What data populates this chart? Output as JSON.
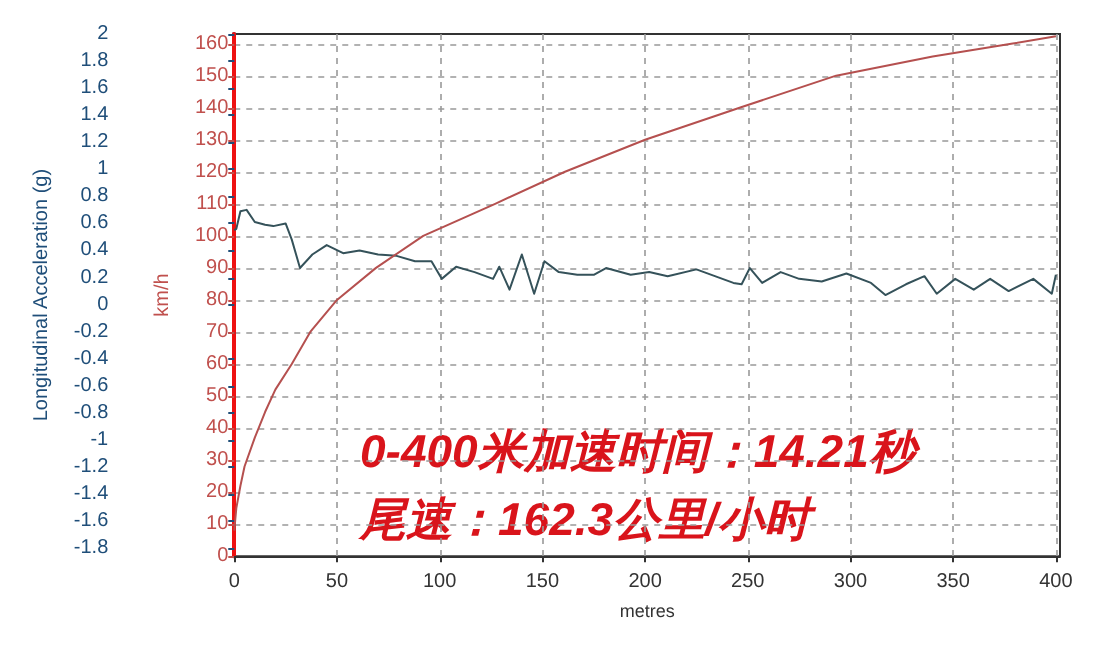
{
  "chart_data": {
    "type": "line",
    "xlabel": "metres",
    "ylabel": "Longitudinal Acceleration (g)",
    "y2label": "km/h",
    "xlim": [
      0,
      402
    ],
    "xticks": [
      0,
      50,
      100,
      150,
      200,
      250,
      300,
      350,
      400
    ],
    "ylim": [
      -1.86,
      2
    ],
    "yticks": [
      -1.8,
      -1.6,
      -1.4,
      -1.2,
      -1,
      -0.8,
      -0.6,
      -0.4,
      -0.2,
      0,
      0.2,
      0.4,
      0.6,
      0.8,
      1,
      1.2,
      1.4,
      1.6,
      1.8,
      2
    ],
    "y2lim": [
      0,
      163
    ],
    "y2ticks": [
      0,
      10,
      20,
      30,
      40,
      50,
      60,
      70,
      80,
      90,
      100,
      110,
      120,
      130,
      140,
      150,
      160
    ],
    "grid": true,
    "marker": "none",
    "line_style": "solid",
    "series": [
      {
        "color": "#35525a",
        "x": [
          0,
          1,
          3,
          6,
          10,
          15,
          19,
          25,
          28,
          32,
          38,
          45,
          53,
          61,
          70,
          79,
          88,
          96,
          101,
          108,
          117,
          126,
          129,
          134,
          140,
          146,
          151,
          158,
          167,
          175,
          181,
          193,
          202,
          211,
          225,
          234,
          243,
          247,
          251,
          257,
          266,
          275,
          286,
          298,
          310,
          317,
          327,
          336,
          342,
          351,
          360,
          368,
          377,
          389,
          398,
          400
        ],
        "values": [
          0.55,
          0.56,
          0.69,
          0.7,
          0.61,
          0.59,
          0.58,
          0.6,
          0.48,
          0.27,
          0.37,
          0.44,
          0.38,
          0.4,
          0.37,
          0.36,
          0.32,
          0.32,
          0.19,
          0.28,
          0.24,
          0.19,
          0.28,
          0.11,
          0.37,
          0.08,
          0.32,
          0.24,
          0.22,
          0.22,
          0.27,
          0.22,
          0.24,
          0.21,
          0.26,
          0.21,
          0.16,
          0.15,
          0.27,
          0.16,
          0.24,
          0.19,
          0.17,
          0.23,
          0.16,
          0.07,
          0.15,
          0.21,
          0.08,
          0.19,
          0.11,
          0.19,
          0.1,
          0.19,
          0.08,
          0.22
        ]
      },
      {
        "color": "#b5504f",
        "axis": "y2",
        "x": [
          0,
          1,
          3,
          5,
          10,
          15,
          20,
          28,
          37,
          50,
          69,
          92,
          127,
          161,
          200,
          246,
          293,
          340,
          379,
          400
        ],
        "values": [
          8,
          15,
          22,
          28,
          37,
          45,
          52,
          60,
          70,
          80,
          90,
          100,
          110,
          120,
          130,
          140,
          150,
          156,
          160,
          162.3
        ]
      }
    ],
    "annotations": [
      "0-400米加速时间：14.21秒",
      "尾速：162.3公里/小时"
    ]
  }
}
